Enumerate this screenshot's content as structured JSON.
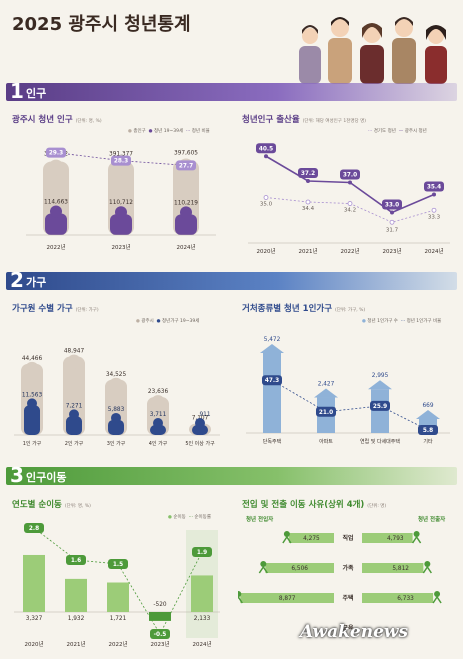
{
  "title": "2025 광주시 청년통계",
  "sections": [
    {
      "num": "1",
      "label": "인구"
    },
    {
      "num": "2",
      "label": "가구"
    },
    {
      "num": "3",
      "label": "인구이동"
    }
  ],
  "colors": {
    "purple": "#6b4a9a",
    "purple_light": "#a88fd0",
    "blue": "#2f4a8c",
    "blue_light": "#8fb2d8",
    "green": "#4d9a3a",
    "green_light": "#9ccc78",
    "beige": "#d8cdc1"
  },
  "panels": {
    "youth_pop": {
      "title": "광주시 청년 인구",
      "unit": "(단위: 명, %)",
      "legend": [
        "총인구",
        "청년 19~39세",
        "청년 비율"
      ]
    },
    "fertility": {
      "title": "청년인구 출산율",
      "unit": "(단위: 해당 여성인구 1천명당 명)",
      "legend": [
        "경기도 청년",
        "광주시 청년"
      ]
    },
    "hh_by_size": {
      "title": "가구원 수별 가구",
      "unit": "(단위: 가구)",
      "legend": [
        "광주시",
        "청년가구 19~39세"
      ]
    },
    "single_hh": {
      "title": "거처종류별 청년 1인가구",
      "unit": "(단위: 가구, %)",
      "legend": [
        "청년 1인가구 수",
        "청년 1인가구 비율"
      ]
    },
    "net_migration": {
      "title": "연도별 순이동",
      "unit": "(단위: 명, %)",
      "legend": [
        "순이동",
        "순이동률"
      ]
    },
    "move_reasons": {
      "title": "전입 및 전출 이동 사유(상위 4개)",
      "unit": "(단위: 명)",
      "left_label": "청년 전입자",
      "right_label": "청년 전출자"
    }
  },
  "chart_data": [
    {
      "type": "bar",
      "title": "광주시 청년 인구",
      "categories": [
        "2022년",
        "2023년",
        "2024년"
      ],
      "series": [
        {
          "name": "총인구",
          "values": [
            391462,
            391377,
            397605
          ]
        },
        {
          "name": "청년 19~39세",
          "values": [
            114663,
            110712,
            110219
          ]
        },
        {
          "name": "청년 비율",
          "values": [
            29.3,
            28.3,
            27.7
          ]
        }
      ],
      "labels": {
        "total": [
          "391,462",
          "391,377",
          "397,605"
        ],
        "youth": [
          "114,663",
          "110,712",
          "110,219"
        ],
        "ratio": [
          "29.3",
          "28.3",
          "27.7"
        ]
      }
    },
    {
      "type": "line",
      "title": "청년인구 출산율",
      "x": [
        "2020년",
        "2021년",
        "2022년",
        "2023년",
        "2024년"
      ],
      "series": [
        {
          "name": "광주시 청년",
          "values": [
            40.5,
            37.2,
            37.0,
            33.0,
            35.4
          ]
        },
        {
          "name": "경기도 청년",
          "values": [
            35.0,
            34.4,
            34.2,
            31.7,
            33.3
          ]
        }
      ],
      "labels": {
        "gwangju": [
          "40.5",
          "37.2",
          "37.0",
          "33.0",
          "35.4"
        ],
        "gyeonggi": [
          "35.0",
          "34.4",
          "34.2",
          "31.7",
          "33.3"
        ]
      },
      "ylim": [
        30,
        42
      ]
    },
    {
      "type": "bar",
      "title": "가구원 수별 가구",
      "categories": [
        "1인 가구",
        "2인 가구",
        "3인 가구",
        "4인 가구",
        "5인 이상 가구"
      ],
      "series": [
        {
          "name": "광주시",
          "values": [
            44466,
            48947,
            34525,
            23636,
            7107
          ]
        },
        {
          "name": "청년가구 19~39세",
          "values": [
            11563,
            7271,
            5883,
            3711,
            911
          ]
        }
      ],
      "labels": {
        "total": [
          "44,466",
          "48,947",
          "34,525",
          "23,636",
          "7,107"
        ],
        "youth": [
          "11,563",
          "7,271",
          "5,883",
          "3,711",
          "911"
        ]
      }
    },
    {
      "type": "bar",
      "title": "거처종류별 청년 1인가구",
      "categories": [
        "단독주택",
        "아파트",
        "연립 및 다세대주택",
        "기타"
      ],
      "series": [
        {
          "name": "청년 1인가구 수",
          "values": [
            5472,
            2427,
            2995,
            669
          ]
        },
        {
          "name": "청년 1인가구 비율",
          "values": [
            47.3,
            21.0,
            25.9,
            5.8
          ]
        }
      ],
      "labels": {
        "count": [
          "5,472",
          "2,427",
          "2,995",
          "669"
        ],
        "ratio": [
          "47.3",
          "21.0",
          "25.9",
          "5.8"
        ]
      }
    },
    {
      "type": "bar",
      "title": "연도별 순이동",
      "categories": [
        "2020년",
        "2021년",
        "2022년",
        "2023년",
        "2024년"
      ],
      "series": [
        {
          "name": "순이동",
          "values": [
            3327,
            1932,
            1721,
            -520,
            2133
          ]
        },
        {
          "name": "순이동률",
          "values": [
            2.8,
            1.6,
            1.5,
            -0.5,
            1.9
          ]
        }
      ],
      "labels": {
        "net": [
          "3,327",
          "1,932",
          "1,721",
          "-520",
          "2,133"
        ],
        "rate": [
          "2.8",
          "1.6",
          "1.5",
          "-0.5",
          "1.9"
        ]
      }
    },
    {
      "type": "table",
      "title": "전입 및 전출 이동 사유(상위 4개)",
      "rows": [
        {
          "reason": "직업",
          "in": 4275,
          "out": 4793,
          "in_label": "4,275",
          "out_label": "4,793"
        },
        {
          "reason": "가족",
          "in": 6506,
          "out": 5812,
          "in_label": "6,506",
          "out_label": "5,812"
        },
        {
          "reason": "주택",
          "in": 8877,
          "out": 6733,
          "in_label": "8,877",
          "out_label": "6,733"
        },
        {
          "reason": "교육",
          "in": null,
          "out": null,
          "in_label": "",
          "out_label": ""
        }
      ]
    }
  ],
  "watermark": "Awakenews"
}
